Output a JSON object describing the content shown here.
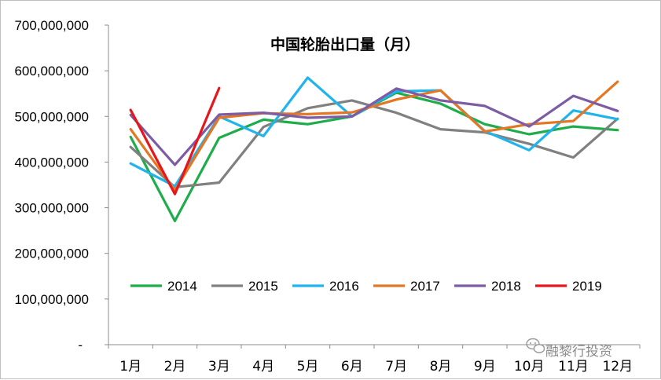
{
  "chart_data": {
    "type": "line",
    "title": "中国轮胎出口量（月）",
    "categories": [
      "1月",
      "2月",
      "3月",
      "4月",
      "5月",
      "6月",
      "7月",
      "8月",
      "9月",
      "10月",
      "11月",
      "12月"
    ],
    "ylim": [
      0,
      700000000
    ],
    "yticks": [
      0,
      100000000,
      200000000,
      300000000,
      400000000,
      500000000,
      600000000,
      700000000
    ],
    "ytick_labels": [
      "-",
      "100,000,000",
      "200,000,000",
      "300,000,000",
      "400,000,000",
      "500,000,000",
      "600,000,000",
      "700,000,000"
    ],
    "grid": false,
    "legend_position": "bottom-inside",
    "series": [
      {
        "name": "2014",
        "color": "#1fad4b",
        "values": [
          455000000,
          271000000,
          453000000,
          493000000,
          483000000,
          500000000,
          552000000,
          528000000,
          483000000,
          461000000,
          478000000,
          470000000
        ]
      },
      {
        "name": "2015",
        "color": "#808080",
        "values": [
          433000000,
          345000000,
          355000000,
          477000000,
          518000000,
          535000000,
          508000000,
          472000000,
          465000000,
          440000000,
          410000000,
          495000000
        ]
      },
      {
        "name": "2016",
        "color": "#1fb4ec",
        "values": [
          397000000,
          347000000,
          500000000,
          457000000,
          585000000,
          500000000,
          555000000,
          557000000,
          468000000,
          426000000,
          513000000,
          494000000
        ]
      },
      {
        "name": "2017",
        "color": "#e57623",
        "values": [
          472000000,
          338000000,
          497000000,
          507000000,
          505000000,
          509000000,
          537000000,
          557000000,
          467000000,
          483000000,
          490000000,
          576000000
        ]
      },
      {
        "name": "2018",
        "color": "#7d5ca4",
        "values": [
          503000000,
          394000000,
          504000000,
          508000000,
          497000000,
          500000000,
          561000000,
          535000000,
          523000000,
          478000000,
          545000000,
          512000000
        ]
      },
      {
        "name": "2019",
        "color": "#e8151b",
        "values": [
          514000000,
          330000000,
          562000000,
          null,
          null,
          null,
          null,
          null,
          null,
          null,
          null,
          null
        ]
      }
    ]
  },
  "watermark": {
    "text": "融黎行投资",
    "icon": "wechat-icon"
  }
}
